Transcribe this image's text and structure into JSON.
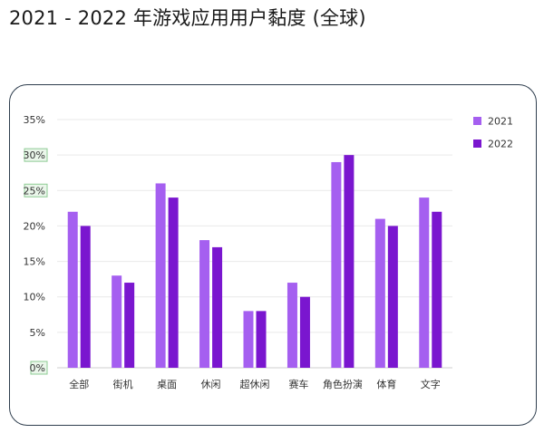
{
  "page": {
    "title": "2021 - 2022 年游戏应用用户黏度 (全球)"
  },
  "colors": {
    "series_2021": "#a55ff0",
    "series_2022": "#7a16cf",
    "grid": "#e9e9e9",
    "card_border": "#2f3e4e",
    "tick_highlight_border": "#8fcc95",
    "tick_highlight_fill": "#eaf6ea"
  },
  "chart_data": {
    "type": "bar",
    "categories": [
      "全部",
      "街机",
      "桌面",
      "休闲",
      "超休闲",
      "赛车",
      "角色扮演",
      "体育",
      "文字"
    ],
    "series": [
      {
        "name": "2021",
        "values": [
          22,
          13,
          26,
          18,
          8,
          12,
          29,
          21,
          24
        ]
      },
      {
        "name": "2022",
        "values": [
          20,
          12,
          24,
          17,
          8,
          10,
          30,
          20,
          22
        ]
      }
    ],
    "ylim": [
      0,
      35
    ],
    "yticks": [
      0,
      5,
      10,
      15,
      20,
      25,
      30,
      35
    ],
    "ytick_labels": [
      "0%",
      "5%",
      "10%",
      "15%",
      "20%",
      "25%",
      "30%",
      "35%"
    ],
    "highlighted_ytick_labels": [
      "0%",
      "25%",
      "30%"
    ],
    "legend_position": "right",
    "grid": true
  }
}
